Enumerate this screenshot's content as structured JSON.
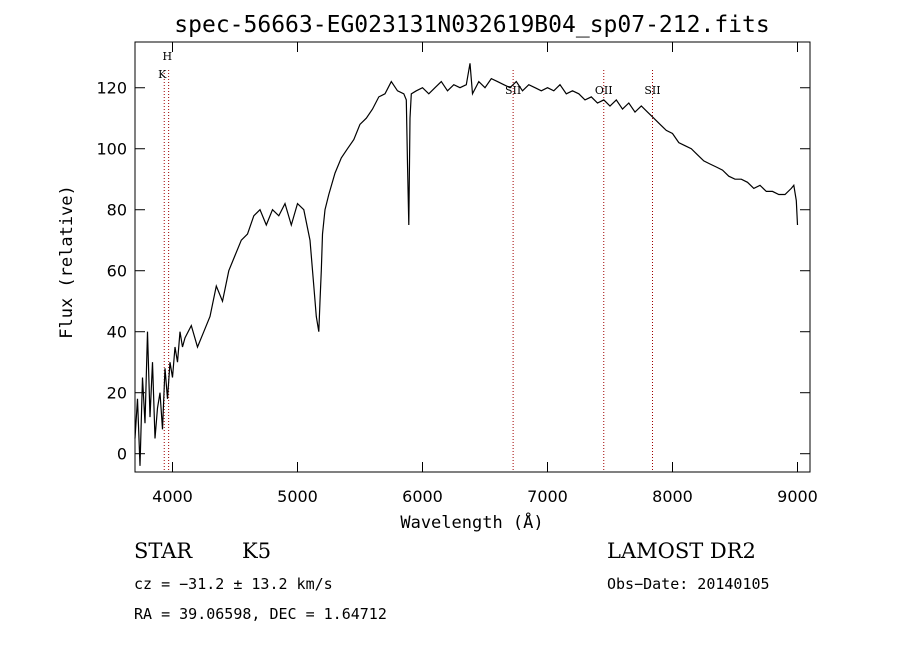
{
  "chart_data": {
    "type": "line",
    "title": "spec-56663-EG023131N032619B04_sp07-212.fits",
    "xlabel": "Wavelength (Å)",
    "ylabel": "Flux (relative)",
    "xlim": [
      3700,
      9100
    ],
    "ylim": [
      -6,
      135
    ],
    "x_ticks": [
      4000,
      5000,
      6000,
      7000,
      8000,
      9000
    ],
    "y_ticks": [
      0,
      20,
      40,
      60,
      80,
      100,
      120
    ],
    "grid": false,
    "series": [
      {
        "color": "#000000",
        "x": [
          3700,
          3720,
          3740,
          3760,
          3780,
          3800,
          3820,
          3840,
          3860,
          3880,
          3900,
          3920,
          3940,
          3960,
          3980,
          4000,
          4020,
          4040,
          4060,
          4080,
          4100,
          4150,
          4200,
          4250,
          4300,
          4350,
          4400,
          4450,
          4500,
          4550,
          4600,
          4650,
          4700,
          4750,
          4800,
          4850,
          4900,
          4950,
          5000,
          5050,
          5100,
          5130,
          5150,
          5170,
          5180,
          5190,
          5200,
          5220,
          5250,
          5300,
          5350,
          5400,
          5450,
          5500,
          5550,
          5600,
          5650,
          5700,
          5750,
          5800,
          5850,
          5870,
          5880,
          5890,
          5900,
          5910,
          5950,
          6000,
          6050,
          6100,
          6150,
          6200,
          6250,
          6300,
          6350,
          6380,
          6400,
          6450,
          6500,
          6550,
          6600,
          6650,
          6700,
          6750,
          6800,
          6850,
          6900,
          6950,
          7000,
          7050,
          7100,
          7150,
          7200,
          7250,
          7300,
          7350,
          7400,
          7450,
          7500,
          7550,
          7600,
          7650,
          7700,
          7750,
          7800,
          7850,
          7900,
          7950,
          8000,
          8050,
          8100,
          8150,
          8200,
          8250,
          8300,
          8350,
          8400,
          8450,
          8500,
          8550,
          8600,
          8650,
          8700,
          8750,
          8800,
          8850,
          8900,
          8950,
          8970,
          8990,
          9000
        ],
        "y": [
          5,
          18,
          -4,
          25,
          10,
          40,
          12,
          30,
          5,
          15,
          20,
          8,
          28,
          18,
          30,
          25,
          35,
          30,
          40,
          35,
          38,
          42,
          35,
          40,
          45,
          55,
          50,
          60,
          65,
          70,
          72,
          78,
          80,
          75,
          80,
          78,
          82,
          75,
          82,
          80,
          70,
          55,
          45,
          40,
          50,
          60,
          72,
          80,
          85,
          92,
          97,
          100,
          103,
          108,
          110,
          113,
          117,
          118,
          122,
          119,
          118,
          116,
          95,
          75,
          110,
          118,
          119,
          120,
          118,
          120,
          122,
          119,
          121,
          120,
          121,
          128,
          118,
          122,
          120,
          123,
          122,
          121,
          120,
          122,
          119,
          121,
          120,
          119,
          120,
          119,
          121,
          118,
          119,
          118,
          116,
          117,
          115,
          116,
          114,
          116,
          113,
          115,
          112,
          114,
          112,
          110,
          108,
          106,
          105,
          102,
          101,
          100,
          98,
          96,
          95,
          94,
          93,
          91,
          90,
          90,
          89,
          87,
          88,
          86,
          86,
          85,
          85,
          87,
          88,
          83,
          75
        ]
      }
    ],
    "lines": [
      {
        "label_top": "H",
        "label_bottom": "K",
        "x": [
          3934,
          3969
        ]
      },
      {
        "label": "SII",
        "x": 6725
      },
      {
        "label": "OII",
        "x": 7450
      },
      {
        "label": "SII",
        "x": 7840
      }
    ]
  },
  "info": {
    "object_class": "STAR",
    "subclass": "K5",
    "survey": "LAMOST DR2",
    "cz": "cz = −31.2 ± 13.2 km/s",
    "obs_date": "Obs−Date: 20140105",
    "radec": "RA =  39.06598, DEC =   1.64712"
  }
}
